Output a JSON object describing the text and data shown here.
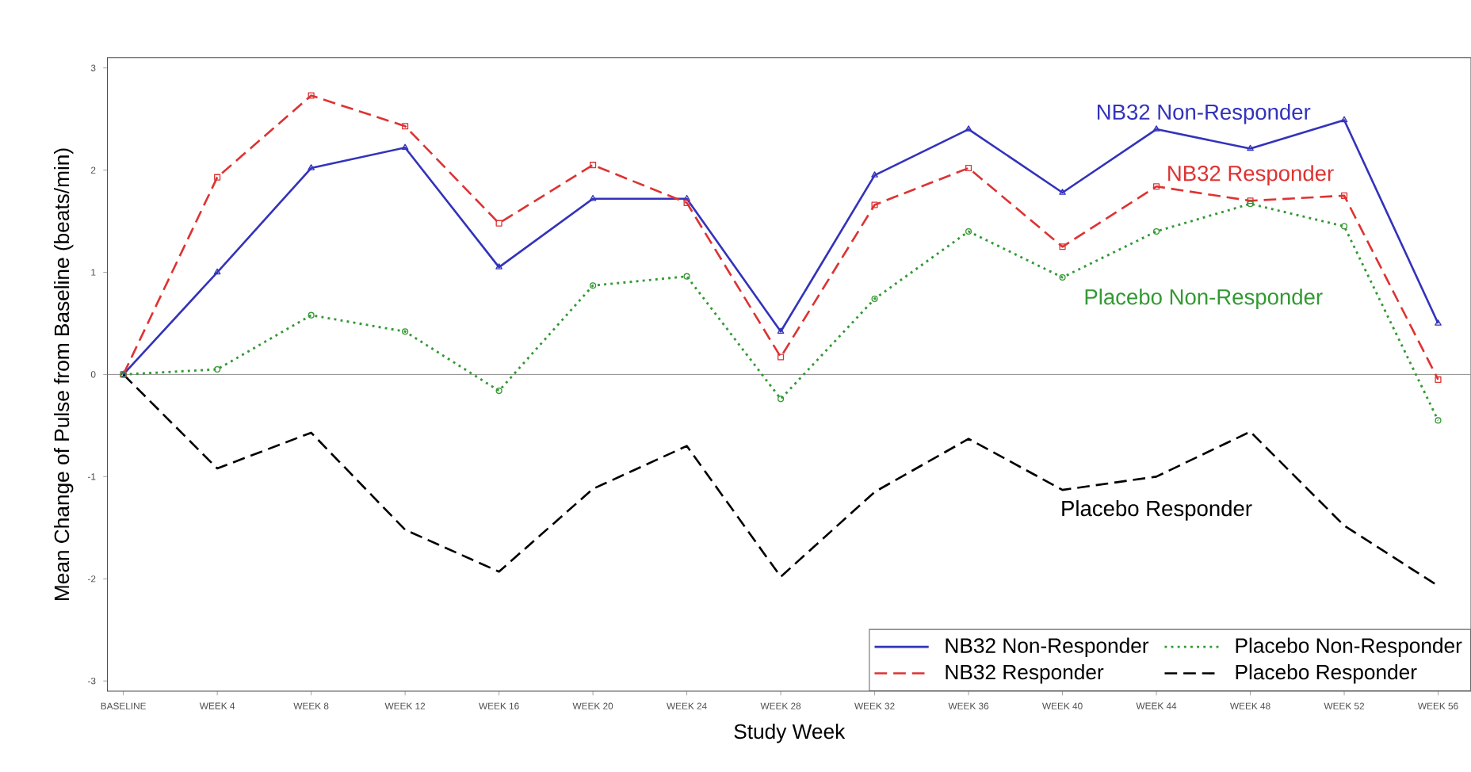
{
  "chart_data": {
    "type": "line",
    "xlabel": "Study Week",
    "ylabel": "Mean Change of Pulse from Baseline (beats/min)",
    "categories": [
      "BASELINE",
      "WEEK 4",
      "WEEK 8",
      "WEEK 12",
      "WEEK 16",
      "WEEK 20",
      "WEEK 24",
      "WEEK 28",
      "WEEK 32",
      "WEEK 36",
      "WEEK 40",
      "WEEK 44",
      "WEEK 48",
      "WEEK 52",
      "WEEK 56"
    ],
    "series": [
      {
        "name": "NB32 Non-Responder",
        "color": "#3333bb",
        "marker": "triangle",
        "line_style": "solid",
        "values": [
          0,
          1.0,
          2.02,
          2.22,
          1.05,
          1.72,
          1.72,
          0.42,
          1.95,
          2.4,
          1.78,
          2.4,
          2.21,
          2.49,
          0.5
        ]
      },
      {
        "name": "NB32 Responder",
        "color": "#dd3333",
        "marker": "square",
        "line_style": "dashed",
        "values": [
          0,
          1.93,
          2.73,
          2.43,
          1.48,
          2.05,
          1.68,
          0.17,
          1.66,
          2.02,
          1.25,
          1.84,
          1.7,
          1.75,
          -0.05
        ]
      },
      {
        "name": "Placebo Non-Responder",
        "color": "#339933",
        "marker": "circle",
        "line_style": "dotted",
        "values": [
          0,
          0.05,
          0.58,
          0.42,
          -0.16,
          0.87,
          0.96,
          -0.24,
          0.74,
          1.4,
          0.95,
          1.4,
          1.67,
          1.45,
          -0.45
        ]
      },
      {
        "name": "Placebo Responder",
        "color": "#000000",
        "marker": "none",
        "line_style": "dashed",
        "values": [
          0,
          -0.92,
          -0.57,
          -1.52,
          -1.93,
          -1.12,
          -0.7,
          -1.98,
          -1.15,
          -0.63,
          -1.13,
          -1.0,
          -0.56,
          -1.48,
          -2.07
        ]
      }
    ],
    "ylim": [
      -3.1,
      3.1
    ],
    "yticks": [
      -3,
      -2,
      -1,
      0,
      1,
      2,
      3
    ],
    "ref_lines": [
      {
        "axis": "y",
        "value": 0,
        "color": "#999999"
      }
    ],
    "annotations": [
      "NB32 Non-Responder",
      "NB32 Responder",
      "Placebo Non-Responder",
      "Placebo Responder"
    ],
    "grid": false,
    "legend": "bottom right"
  }
}
